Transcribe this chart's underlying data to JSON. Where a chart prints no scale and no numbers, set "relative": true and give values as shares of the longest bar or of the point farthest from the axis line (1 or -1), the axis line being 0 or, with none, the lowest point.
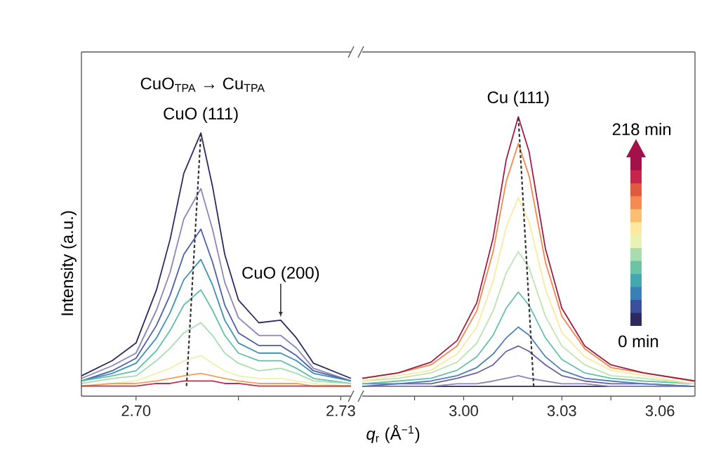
{
  "chart_data": [
    {
      "type": "line",
      "relative": true,
      "ylabel": "Intensity (a.u.)",
      "tick_labels": "x",
      "xlim": [
        2.692,
        2.7315
      ],
      "xticks": [
        {
          "value": 2.7,
          "label": "2.70"
        },
        {
          "value": 2.715,
          "label": null
        },
        {
          "value": 2.73,
          "label": "2.73"
        }
      ],
      "x": [
        2.692,
        2.6965,
        2.7,
        2.703,
        2.705,
        2.707,
        2.7095,
        2.7112,
        2.713,
        2.715,
        2.718,
        2.7212,
        2.7235,
        2.726,
        2.7315
      ],
      "series": [
        {
          "color": "#2e2a5e",
          "values": [
            0.04,
            0.1,
            0.17,
            0.38,
            0.58,
            0.84,
            1.0,
            0.79,
            0.52,
            0.34,
            0.25,
            0.26,
            0.19,
            0.09,
            0.03
          ]
        },
        {
          "color": "#8c86b8",
          "values": [
            0.03,
            0.08,
            0.13,
            0.3,
            0.45,
            0.66,
            0.78,
            0.62,
            0.41,
            0.27,
            0.2,
            0.2,
            0.15,
            0.07,
            0.02
          ]
        },
        {
          "color": "#4a5fa8",
          "values": [
            0.02,
            0.06,
            0.11,
            0.24,
            0.36,
            0.52,
            0.62,
            0.49,
            0.32,
            0.21,
            0.16,
            0.16,
            0.12,
            0.06,
            0.02
          ]
        },
        {
          "color": "#3f8fb5",
          "values": [
            0.02,
            0.05,
            0.09,
            0.19,
            0.29,
            0.42,
            0.5,
            0.4,
            0.26,
            0.17,
            0.13,
            0.13,
            0.1,
            0.05,
            0.02
          ]
        },
        {
          "color": "#5fbfa8",
          "values": [
            0.02,
            0.04,
            0.06,
            0.14,
            0.22,
            0.32,
            0.38,
            0.3,
            0.2,
            0.13,
            0.1,
            0.1,
            0.07,
            0.03,
            0.01
          ]
        },
        {
          "color": "#a8dcb0",
          "values": [
            0.01,
            0.03,
            0.04,
            0.1,
            0.15,
            0.21,
            0.25,
            0.2,
            0.13,
            0.09,
            0.06,
            0.07,
            0.05,
            0.02,
            0.01
          ]
        },
        {
          "color": "#f2eeb0",
          "values": [
            0.0,
            0.01,
            0.02,
            0.05,
            0.07,
            0.1,
            0.12,
            0.09,
            0.06,
            0.04,
            0.03,
            0.03,
            0.02,
            0.01,
            0.0
          ]
        },
        {
          "color": "#f5a05a",
          "values": [
            0.0,
            0.01,
            0.01,
            0.02,
            0.03,
            0.04,
            0.05,
            0.04,
            0.03,
            0.02,
            0.01,
            0.01,
            0.01,
            0.0,
            0.0
          ]
        },
        {
          "color": "#c0304a",
          "values": [
            0.0,
            0.0,
            0.0,
            0.01,
            0.01,
            0.02,
            0.02,
            0.02,
            0.01,
            0.01,
            0.0,
            0.0,
            0.0,
            0.0,
            0.0
          ]
        },
        {
          "type": "line",
          "line_style": "dashed",
          "color": "#333333",
          "x": [
            2.7074,
            2.7095
          ],
          "values": [
            0.0,
            1.0
          ]
        }
      ],
      "annotations": [
        "CuO$_{TPA}$ → Cu$_{TPA}$",
        {
          "text": "CuO (111)",
          "x": 2.7095,
          "y": 1.0
        },
        {
          "text": "CuO (200)",
          "x": 2.7212,
          "y": 0.26
        }
      ]
    },
    {
      "type": "line",
      "relative": true,
      "xlabel": "*q*$_{r}$ (Å$^{−1}$)",
      "tick_labels": "x",
      "xlim": [
        2.969,
        3.0707
      ],
      "xticks": [
        {
          "value": 2.985,
          "label": null
        },
        {
          "value": 3.0,
          "label": "3.00"
        },
        {
          "value": 3.015,
          "label": null
        },
        {
          "value": 3.03,
          "label": "3.03"
        },
        {
          "value": 3.045,
          "label": null
        },
        {
          "value": 3.06,
          "label": "3.06"
        }
      ],
      "x": [
        2.969,
        2.98,
        2.99,
        2.998,
        3.004,
        3.009,
        3.013,
        3.0167,
        3.02,
        3.025,
        3.03,
        3.037,
        3.045,
        3.055,
        3.0707
      ],
      "series": [
        {
          "color": "#2e2a5e",
          "values": [
            0,
            0,
            0,
            0,
            0,
            0,
            0,
            0,
            0,
            0,
            0,
            0,
            0,
            0,
            0
          ]
        },
        {
          "color": "#8c86b0",
          "values": [
            0,
            0,
            0,
            0.01,
            0.01,
            0.02,
            0.03,
            0.04,
            0.03,
            0.02,
            0.01,
            0.01,
            0,
            0,
            0
          ]
        },
        {
          "color": "#6a60a0",
          "values": [
            0,
            0.01,
            0.01,
            0.03,
            0.05,
            0.08,
            0.13,
            0.15,
            0.13,
            0.08,
            0.04,
            0.02,
            0.01,
            0.01,
            0
          ]
        },
        {
          "color": "#4f7fb8",
          "values": [
            0.01,
            0.01,
            0.02,
            0.04,
            0.07,
            0.12,
            0.18,
            0.22,
            0.19,
            0.11,
            0.06,
            0.03,
            0.02,
            0.01,
            0
          ]
        },
        {
          "color": "#66bfa8",
          "values": [
            0.01,
            0.02,
            0.03,
            0.06,
            0.11,
            0.19,
            0.29,
            0.35,
            0.3,
            0.18,
            0.1,
            0.05,
            0.03,
            0.02,
            0.01
          ]
        },
        {
          "color": "#bfe3b0",
          "values": [
            0.02,
            0.03,
            0.05,
            0.09,
            0.16,
            0.28,
            0.42,
            0.5,
            0.44,
            0.26,
            0.15,
            0.08,
            0.04,
            0.03,
            0.01
          ]
        },
        {
          "color": "#fbe9a0",
          "values": [
            0.02,
            0.04,
            0.06,
            0.12,
            0.22,
            0.39,
            0.59,
            0.7,
            0.61,
            0.36,
            0.2,
            0.11,
            0.06,
            0.04,
            0.01
          ]
        },
        {
          "color": "#f08a4b",
          "values": [
            0.03,
            0.05,
            0.08,
            0.15,
            0.28,
            0.5,
            0.76,
            0.9,
            0.78,
            0.46,
            0.26,
            0.14,
            0.07,
            0.05,
            0.02
          ]
        },
        {
          "color": "#a11d45",
          "values": [
            0.03,
            0.05,
            0.09,
            0.17,
            0.31,
            0.55,
            0.84,
            1.0,
            0.87,
            0.51,
            0.29,
            0.15,
            0.08,
            0.05,
            0.02
          ]
        },
        {
          "type": "line",
          "line_style": "dashed",
          "color": "#333333",
          "x": [
            3.0214,
            3.0167
          ],
          "values": [
            0.0,
            1.0
          ]
        }
      ],
      "annotations": [
        {
          "text": "Cu (111)",
          "x": 3.0167,
          "y": 1.0
        },
        "218 min",
        "0 min"
      ]
    }
  ]
}
